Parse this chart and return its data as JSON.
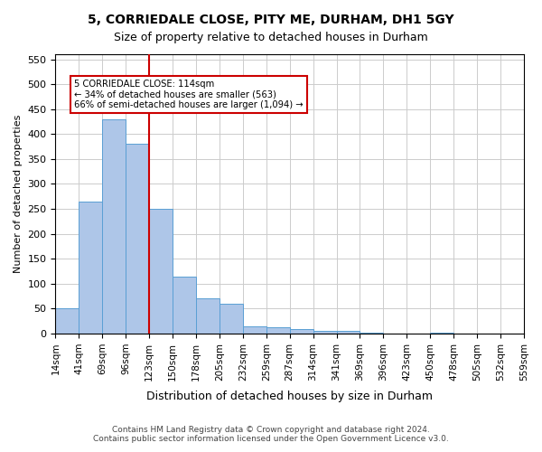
{
  "title": "5, CORRIEDALE CLOSE, PITY ME, DURHAM, DH1 5GY",
  "subtitle": "Size of property relative to detached houses in Durham",
  "xlabel": "Distribution of detached houses by size in Durham",
  "ylabel": "Number of detached properties",
  "bin_labels": [
    "14sqm",
    "41sqm",
    "69sqm",
    "96sqm",
    "123sqm",
    "150sqm",
    "178sqm",
    "205sqm",
    "232sqm",
    "259sqm",
    "287sqm",
    "314sqm",
    "341sqm",
    "369sqm",
    "396sqm",
    "423sqm",
    "450sqm",
    "478sqm",
    "505sqm",
    "532sqm",
    "559sqm"
  ],
  "bar_heights": [
    50,
    265,
    430,
    380,
    250,
    115,
    70,
    60,
    15,
    13,
    10,
    6,
    5,
    1,
    0,
    0,
    1,
    0,
    0,
    0
  ],
  "bar_color": "#aec6e8",
  "bar_edge_color": "#5a9fd4",
  "property_label": "5 CORRIEDALE CLOSE: 114sqm",
  "annotation_line1": "← 34% of detached houses are smaller (563)",
  "annotation_line2": "66% of semi-detached houses are larger (1,094) →",
  "vline_color": "#cc0000",
  "vline_x": 3.5,
  "annotation_box_color": "#ffffff",
  "annotation_box_edge": "#cc0000",
  "ylim": [
    0,
    560
  ],
  "yticks": [
    0,
    50,
    100,
    150,
    200,
    250,
    300,
    350,
    400,
    450,
    500,
    550
  ],
  "footer_line1": "Contains HM Land Registry data © Crown copyright and database right 2024.",
  "footer_line2": "Contains public sector information licensed under the Open Government Licence v3.0.",
  "background_color": "#ffffff",
  "grid_color": "#cccccc"
}
